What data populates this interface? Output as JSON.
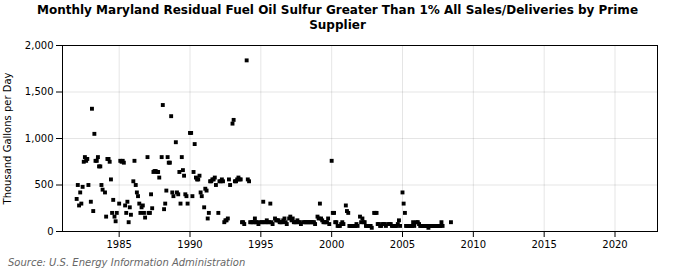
{
  "chart_data": {
    "type": "scatter",
    "title": "Monthly Maryland Residual Fuel Oil Sulfur Greater Than 1% All Sales/Deliveries by Prime\nSupplier",
    "ylabel": "Thousand Gallons per Day",
    "source": "Source: U.S. Energy Information Administration",
    "marker": "square",
    "grid": true,
    "xlim": [
      1981,
      2023
    ],
    "ylim": [
      0,
      2000
    ],
    "xticks": [
      1985,
      1990,
      1995,
      2000,
      2005,
      2010,
      2015,
      2020
    ],
    "yticks": [
      0,
      500,
      {
        "value": 1000,
        "label": "1,000"
      },
      {
        "value": 1500,
        "label": "1,500"
      },
      {
        "value": 2000,
        "label": "2,000"
      }
    ],
    "x": [
      1982.0,
      1982.08,
      1982.17,
      1982.25,
      1982.33,
      1982.42,
      1982.5,
      1982.58,
      1982.67,
      1982.75,
      1982.83,
      1983.0,
      1983.08,
      1983.17,
      1983.25,
      1983.33,
      1983.42,
      1983.5,
      1983.58,
      1983.67,
      1983.75,
      1983.83,
      1984.0,
      1984.08,
      1984.17,
      1984.25,
      1984.33,
      1984.42,
      1984.5,
      1984.58,
      1984.67,
      1984.75,
      1984.83,
      1985.0,
      1985.08,
      1985.17,
      1985.25,
      1985.33,
      1985.42,
      1985.5,
      1985.58,
      1985.67,
      1985.75,
      1985.83,
      1986.0,
      1986.08,
      1986.17,
      1986.25,
      1986.33,
      1986.42,
      1986.5,
      1986.58,
      1986.67,
      1986.75,
      1986.83,
      1987.0,
      1987.08,
      1987.17,
      1987.25,
      1987.33,
      1987.42,
      1987.5,
      1987.58,
      1987.67,
      1987.75,
      1987.83,
      1988.0,
      1988.08,
      1988.17,
      1988.25,
      1988.33,
      1988.42,
      1988.5,
      1988.58,
      1988.67,
      1988.75,
      1988.83,
      1989.0,
      1989.08,
      1989.17,
      1989.25,
      1989.33,
      1989.42,
      1989.5,
      1989.58,
      1989.67,
      1989.75,
      1989.83,
      1990.0,
      1990.08,
      1990.17,
      1990.25,
      1990.33,
      1990.42,
      1990.5,
      1990.58,
      1990.67,
      1990.75,
      1990.83,
      1991.0,
      1991.08,
      1991.17,
      1991.25,
      1991.33,
      1991.42,
      1991.5,
      1991.58,
      1991.67,
      1991.75,
      1991.83,
      1992.0,
      1992.08,
      1992.17,
      1992.25,
      1992.33,
      1992.42,
      1992.5,
      1992.58,
      1992.67,
      1992.75,
      1992.83,
      1993.0,
      1993.08,
      1993.17,
      1993.25,
      1993.33,
      1993.42,
      1993.5,
      1993.58,
      1993.67,
      1993.75,
      1993.83,
      1994.0,
      1994.08,
      1994.17,
      1994.25,
      1994.33,
      1994.42,
      1994.5,
      1994.58,
      1994.67,
      1994.75,
      1994.83,
      1995.0,
      1995.08,
      1995.17,
      1995.25,
      1995.33,
      1995.42,
      1995.5,
      1995.58,
      1995.67,
      1995.75,
      1995.83,
      1996.0,
      1996.08,
      1996.17,
      1996.25,
      1996.33,
      1996.42,
      1996.5,
      1996.58,
      1996.67,
      1996.75,
      1996.83,
      1997.0,
      1997.08,
      1997.17,
      1997.25,
      1997.33,
      1997.42,
      1997.5,
      1997.58,
      1997.67,
      1997.75,
      1997.83,
      1998.0,
      1998.08,
      1998.17,
      1998.25,
      1998.33,
      1998.42,
      1998.5,
      1998.58,
      1998.67,
      1998.75,
      1998.83,
      1999.0,
      1999.08,
      1999.17,
      1999.25,
      1999.33,
      1999.42,
      1999.5,
      1999.58,
      1999.67,
      1999.75,
      1999.83,
      2000.0,
      2000.08,
      2000.17,
      2000.25,
      2000.33,
      2000.42,
      2000.5,
      2000.58,
      2000.67,
      2000.75,
      2000.83,
      2001.0,
      2001.08,
      2001.17,
      2001.25,
      2001.33,
      2001.42,
      2001.5,
      2001.58,
      2001.67,
      2001.75,
      2001.83,
      2002.0,
      2002.08,
      2002.17,
      2002.25,
      2002.33,
      2002.42,
      2002.5,
      2002.58,
      2002.67,
      2002.75,
      2002.83,
      2003.0,
      2003.08,
      2003.17,
      2003.25,
      2003.33,
      2003.42,
      2003.5,
      2003.58,
      2003.67,
      2003.75,
      2003.83,
      2004.0,
      2004.08,
      2004.17,
      2004.25,
      2004.33,
      2004.42,
      2004.5,
      2004.58,
      2004.67,
      2004.75,
      2004.83,
      2005.0,
      2005.08,
      2005.17,
      2005.25,
      2005.33,
      2005.42,
      2005.5,
      2005.58,
      2005.67,
      2005.75,
      2005.83,
      2006.0,
      2006.08,
      2006.17,
      2006.25,
      2006.33,
      2006.42,
      2006.5,
      2006.58,
      2006.67,
      2006.75,
      2006.83,
      2007.0,
      2007.08,
      2007.17,
      2007.25,
      2007.33,
      2007.42,
      2007.5,
      2007.58,
      2007.67,
      2007.75,
      2007.83,
      2008.42
    ],
    "values": [
      350,
      500,
      280,
      420,
      300,
      480,
      750,
      800,
      760,
      780,
      500,
      320,
      1320,
      220,
      1050,
      760,
      760,
      800,
      700,
      700,
      500,
      450,
      420,
      160,
      780,
      780,
      750,
      560,
      200,
      340,
      160,
      110,
      200,
      300,
      760,
      750,
      760,
      740,
      280,
      200,
      320,
      100,
      260,
      180,
      540,
      760,
      500,
      420,
      380,
      300,
      200,
      260,
      280,
      200,
      150,
      800,
      200,
      200,
      400,
      250,
      640,
      650,
      650,
      640,
      640,
      580,
      800,
      1360,
      240,
      300,
      440,
      800,
      740,
      740,
      1240,
      420,
      380,
      960,
      420,
      400,
      640,
      300,
      800,
      660,
      600,
      400,
      380,
      300,
      1060,
      1060,
      380,
      640,
      940,
      580,
      560,
      560,
      600,
      420,
      380,
      260,
      460,
      440,
      140,
      200,
      540,
      540,
      560,
      560,
      580,
      500,
      200,
      540,
      540,
      560,
      540,
      100,
      120,
      120,
      140,
      560,
      500,
      1160,
      1200,
      540,
      540,
      560,
      580,
      560,
      560,
      100,
      100,
      80,
      1840,
      560,
      540,
      100,
      100,
      100,
      100,
      140,
      100,
      100,
      80,
      100,
      100,
      320,
      100,
      100,
      120,
      100,
      100,
      300,
      100,
      80,
      140,
      120,
      120,
      120,
      100,
      100,
      100,
      120,
      140,
      100,
      80,
      140,
      160,
      120,
      140,
      100,
      100,
      100,
      120,
      100,
      100,
      80,
      100,
      100,
      100,
      100,
      100,
      100,
      100,
      100,
      100,
      100,
      80,
      160,
      140,
      300,
      140,
      120,
      100,
      100,
      100,
      100,
      140,
      80,
      760,
      200,
      200,
      100,
      100,
      60,
      60,
      60,
      80,
      100,
      80,
      280,
      220,
      200,
      60,
      60,
      60,
      60,
      60,
      60,
      80,
      60,
      160,
      100,
      140,
      100,
      100,
      60,
      60,
      60,
      60,
      60,
      40,
      200,
      200,
      200,
      80,
      80,
      60,
      60,
      80,
      80,
      80,
      60,
      80,
      80,
      80,
      60,
      60,
      60,
      60,
      60,
      80,
      120,
      60,
      420,
      300,
      200,
      60,
      60,
      60,
      60,
      60,
      60,
      100,
      60,
      100,
      100,
      80,
      60,
      60,
      60,
      60,
      60,
      60,
      60,
      40,
      60,
      60,
      60,
      60,
      60,
      60,
      60,
      60,
      60,
      100,
      60,
      100
    ]
  }
}
